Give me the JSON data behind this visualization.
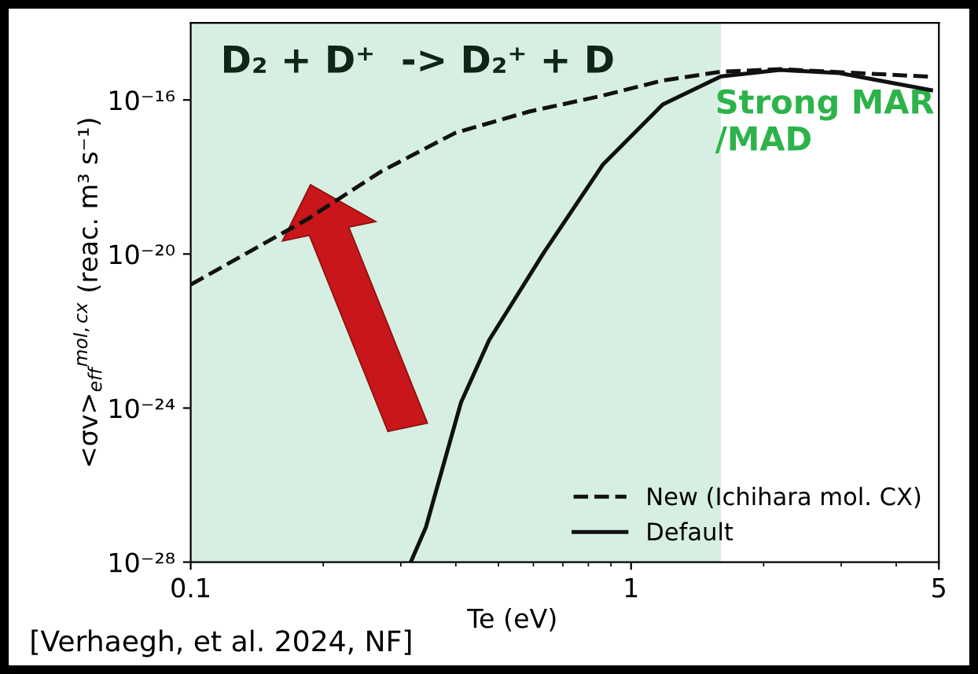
{
  "chart_data": {
    "type": "line",
    "xlabel": "Te (eV)",
    "ylabel": "<σv>$_{eff}$$^{mol,cx}$ (reac. m³ s⁻¹)",
    "log": "xy",
    "xlim": [
      0.1,
      5
    ],
    "xticks": [
      0.1,
      1,
      5
    ],
    "ylim": [
      1e-28,
      1e-14
    ],
    "yticks": [
      {
        "value": 1e-28,
        "label": "10⁻²⁸"
      },
      {
        "value": 1e-24,
        "label": "10⁻²⁴"
      },
      {
        "value": 1e-20,
        "label": "10⁻²⁰"
      },
      {
        "value": 1e-16,
        "label": "10⁻¹⁶"
      }
    ],
    "grid": false,
    "legend": "bottom right",
    "series": [
      {
        "name": "New (Ichihara mol. CX)",
        "color": "#111111",
        "line_style": "dashed",
        "x": [
          0.1,
          0.135,
          0.184,
          0.271,
          0.399,
          0.587,
          0.863,
          1.18,
          1.6,
          2.18,
          4.8
        ],
        "values": [
          1.6e-21,
          1.1e-20,
          8e-20,
          1.4e-18,
          1.4e-17,
          5e-17,
          1.3e-16,
          3.2e-16,
          5.4e-16,
          6.3e-16,
          4e-16
        ]
      },
      {
        "name": "Default",
        "color": "#111111",
        "line_style": "solid",
        "x": [
          0.316,
          0.342,
          0.411,
          0.476,
          0.634,
          0.863,
          1.18,
          1.6,
          2.18,
          2.97,
          4.8
        ],
        "values": [
          1e-28,
          8e-28,
          1.4e-24,
          5.8e-23,
          1.1e-20,
          2.1e-18,
          7.6e-17,
          4.1e-16,
          6e-16,
          5e-16,
          1.8e-16
        ]
      }
    ],
    "bands": [
      {
        "axis": "x",
        "from": 0.1,
        "to": 1.6,
        "label": "Strong MAR\n/MAD",
        "color": "#d6efe2"
      }
    ],
    "annotations": [
      "D₂ + D⁺  -> D₂⁺ + D",
      "[Verhaegh, et al. 2024, NF]"
    ]
  }
}
